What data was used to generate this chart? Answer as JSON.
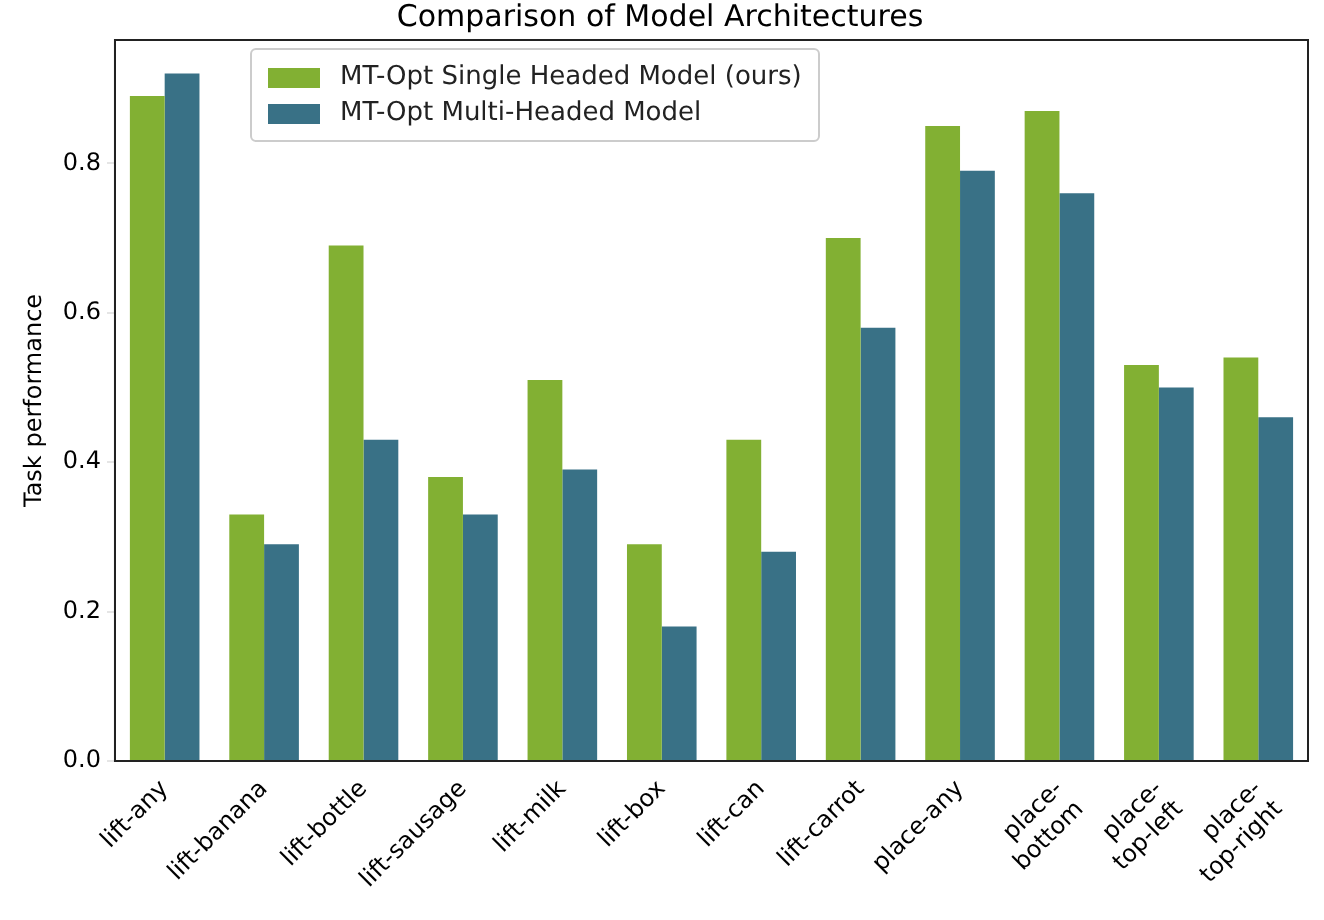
{
  "chart_data": {
    "type": "bar",
    "title": "Comparison of Model Architectures",
    "ylabel": "Task performance",
    "categories": [
      "lift-any",
      "lift-banana",
      "lift-bottle",
      "lift-sausage",
      "lift-milk",
      "lift-box",
      "lift-can",
      "lift-carrot",
      "place-any",
      "place-\nbottom",
      "place-\ntop-left",
      "place-\ntop-right"
    ],
    "series": [
      {
        "name": "MT-Opt Single Headed Model (ours)",
        "color": "#82b033",
        "values": [
          0.89,
          0.33,
          0.69,
          0.38,
          0.51,
          0.29,
          0.43,
          0.7,
          0.85,
          0.87,
          0.53,
          0.54
        ]
      },
      {
        "name": "MT-Opt Multi-Headed Model",
        "color": "#397186",
        "values": [
          0.92,
          0.29,
          0.43,
          0.33,
          0.39,
          0.18,
          0.28,
          0.58,
          0.79,
          0.76,
          0.5,
          0.46
        ]
      }
    ],
    "ylim": [
      0,
      0.965
    ],
    "yticks": [
      {
        "value": 0,
        "label": "0.0"
      },
      {
        "value": 0.2,
        "label": "0.2"
      },
      {
        "value": 0.4,
        "label": "0.4"
      },
      {
        "value": 0.6,
        "label": "0.6"
      },
      {
        "value": 0.8,
        "label": "0.8"
      }
    ],
    "grid": false,
    "legend": "top left"
  }
}
